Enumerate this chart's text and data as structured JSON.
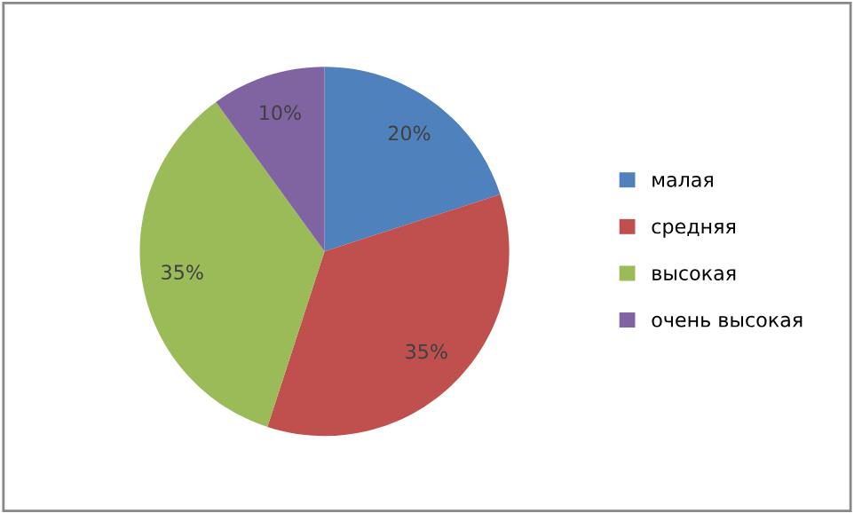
{
  "chart_data": {
    "type": "pie",
    "categories": [
      "малая",
      "средняя",
      "высокая",
      "очень высокая"
    ],
    "values": [
      20,
      35,
      35,
      10
    ],
    "colors": [
      "#4f81bd",
      "#c0504d",
      "#9bbb59",
      "#8064a2"
    ],
    "value_labels": [
      "20%",
      "35%",
      "35%",
      "10%"
    ],
    "legend": "right"
  }
}
